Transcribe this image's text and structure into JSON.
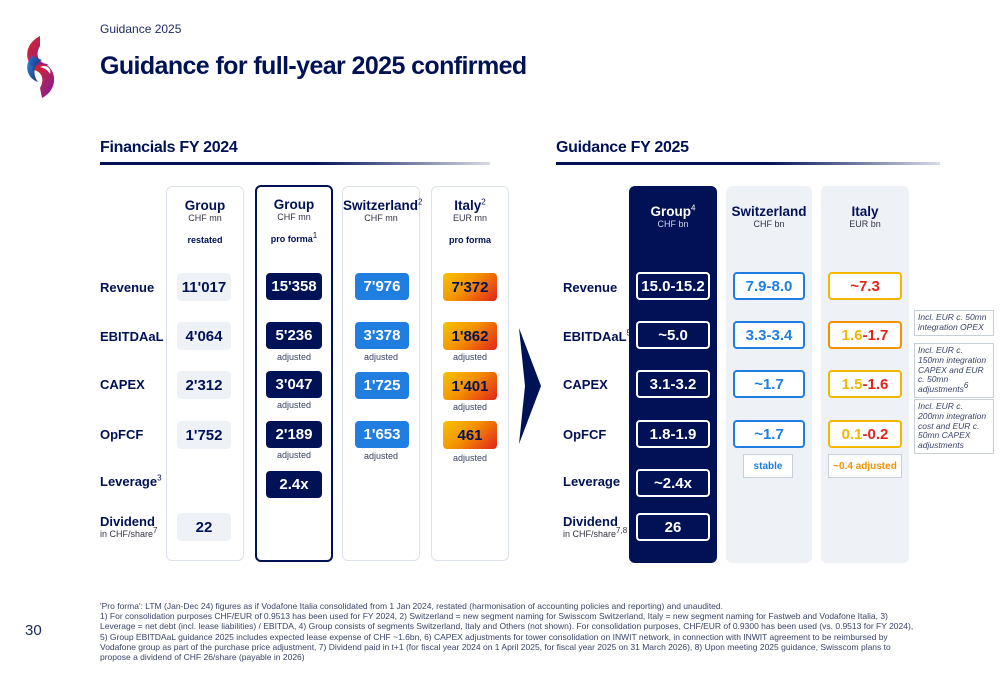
{
  "header": {
    "subtitle": "Guidance 2025",
    "title": "Guidance for full-year 2025 confirmed",
    "page_number": "30"
  },
  "left": {
    "section_title": "Financials FY 2024",
    "row_labels": [
      "Revenue",
      "EBITDAaL",
      "CAPEX",
      "OpFCF",
      "Leverage",
      "Dividend"
    ],
    "leverage_sup": "3",
    "dividend_sub": "in CHF/share",
    "dividend_sup": "7",
    "columns": [
      {
        "name": "Group",
        "unit": "CHF mn",
        "tag": "restated",
        "name_sup": "",
        "tag_sup": "",
        "values": [
          "11'017",
          "4'064",
          "2'312",
          "1'752",
          "22"
        ]
      },
      {
        "name": "Group",
        "unit": "CHF mn",
        "tag": "pro forma",
        "name_sup": "",
        "tag_sup": "1",
        "values": [
          "15'358",
          "5'236",
          "3'047",
          "2'189",
          "2.4x"
        ],
        "notes": [
          "adjusted",
          "adjusted",
          "adjusted"
        ]
      },
      {
        "name": "Switzerland",
        "unit": "CHF mn",
        "tag": "",
        "name_sup": "2",
        "tag_sup": "",
        "values": [
          "7'976",
          "3'378",
          "1'725",
          "1'653"
        ],
        "notes": [
          "adjusted",
          "adjusted"
        ]
      },
      {
        "name": "Italy",
        "unit": "EUR mn",
        "tag": "pro forma",
        "name_sup": "2",
        "tag_sup": "",
        "values": [
          "7'372",
          "1'862",
          "1'401",
          "461"
        ],
        "notes": [
          "adjusted",
          "adjusted",
          "adjusted"
        ]
      }
    ]
  },
  "right": {
    "section_title": "Guidance FY 2025",
    "row_labels": [
      "Revenue",
      "EBITDAaL",
      "CAPEX",
      "OpFCF",
      "Leverage",
      "Dividend"
    ],
    "ebitda_sup": "5",
    "dividend_sub": "in CHF/share",
    "dividend_sup": "7,8",
    "group": {
      "name": "Group",
      "name_sup": "4",
      "unit": "CHF bn",
      "values": [
        "15.0-15.2",
        "~5.0",
        "3.1-3.2",
        "1.8-1.9",
        "~2.4x",
        "26"
      ]
    },
    "switzerland": {
      "name": "Switzerland",
      "unit": "CHF bn",
      "values": [
        "7.9-8.0",
        "3.3-3.4",
        "~1.7",
        "~1.7"
      ],
      "tag": "stable"
    },
    "italy": {
      "name": "Italy",
      "unit": "EUR bn",
      "revenue": "~7.3",
      "ebitda_a": "1.6",
      "ebitda_sep": "-",
      "ebitda_b": "1.7",
      "capex_a": "1.5",
      "capex_sep": "-",
      "capex_b": "1.6",
      "opfcf_a": "0.1",
      "opfcf_sep": "-",
      "opfcf_b": "0.2",
      "tag": "~0.4 adjusted"
    },
    "callouts": [
      "Incl. EUR c. 50mn integration OPEX",
      "Incl. EUR c. 150mn integration CAPEX and EUR c. 50mn adjustments",
      "Incl. EUR c. 200mn integration cost and EUR c. 50mn CAPEX adjustments"
    ],
    "callout_sup": "6"
  },
  "footnotes": [
    "'Pro forma': LTM (Jan-Dec 24) figures as if Vodafone Italia consolidated from 1 Jan 2024, restated (harmonisation of accounting policies and reporting) and unaudited.",
    "1) For consolidation purposes CHF/EUR of 0.9513 has been used for FY 2024, 2) Switzerland = new segment naming for Swisscom Switzerland, Italy = new segment naming for Fastweb and Vodafone Italia, 3) Leverage = net debt (incl. lease liabilities) / EBITDA, 4) Group consists of segments Switzerland, Italy and Others (not shown). For consolidation purposes, CHF/EUR of 0.9300 has been used (vs. 0.9513 for FY 2024), 5) Group EBITDAaL guidance 2025 includes expected lease expense of CHF ~1.6bn, 6) CAPEX adjustments for tower consolidation on INWIT network, in connection with INWIT agreement to be reimbursed by Vodafone group as part of the purchase price adjustment, 7) Dividend paid in t+1 (for fiscal year 2024 on 1 April 2025, for fiscal year 2025 on 31 March 2026), 8) Upon meeting 2025 guidance, Swisscom plans to propose a dividend of CHF 26/share (payable in 2026)"
  ],
  "colors": {
    "navy": "#001155",
    "blue": "#1f7ee0",
    "red": "#e2241b",
    "yellow": "#f2b800",
    "orange": "#f39200"
  }
}
